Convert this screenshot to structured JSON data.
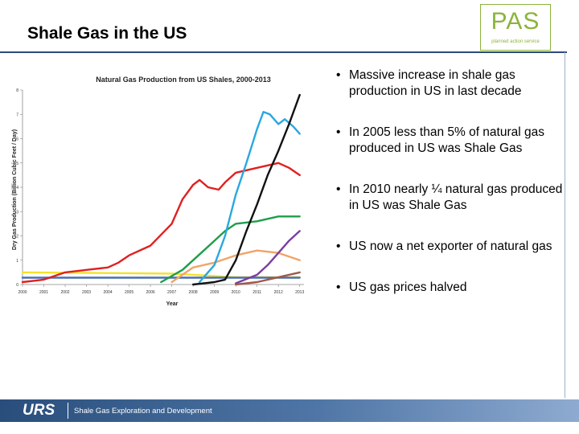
{
  "slide": {
    "title": "Shale Gas in the US",
    "logo_text": "PAS",
    "logo_subtext": "planned action service",
    "footer_logo": "URS",
    "footer_text": "Shale Gas Exploration and Development"
  },
  "bullets": [
    "Massive increase in shale gas production in US in last decade",
    "In 2005  less than 5% of natural gas produced in US was Shale Gas",
    "In 2010 nearly ¼ natural gas produced in US was Shale Gas",
    "US now a net exporter of natural gas",
    "US gas prices halved"
  ],
  "chart_data": {
    "type": "line",
    "title": "Natural Gas Production from US Shales, 2000-2013",
    "xlabel": "Year",
    "ylabel": "Dry Gas Production (Billion Cubic Feet / Day)",
    "xlim": [
      2000,
      2013.2
    ],
    "ylim": [
      0,
      8
    ],
    "x_ticks": [
      "2000",
      "2001",
      "2002",
      "2003",
      "2004",
      "2005",
      "2006",
      "2007",
      "2008",
      "2009",
      "2010",
      "2011",
      "2012",
      "2013"
    ],
    "y_ticks": [
      "0",
      "1",
      "2",
      "3",
      "4",
      "5",
      "6",
      "7",
      "8"
    ],
    "grid": false,
    "series": [
      {
        "color": "#f2e22a",
        "points": [
          [
            2000,
            0.5
          ],
          [
            2007,
            0.45
          ],
          [
            2008,
            0.4
          ],
          [
            2009,
            0.35
          ],
          [
            2010,
            0.3
          ],
          [
            2013,
            0.3
          ]
        ]
      },
      {
        "color": "#4a6fb5",
        "points": [
          [
            2000,
            0.28
          ],
          [
            2013,
            0.28
          ]
        ]
      },
      {
        "color": "#e02020",
        "points": [
          [
            2000,
            0.1
          ],
          [
            2001,
            0.2
          ],
          [
            2002,
            0.5
          ],
          [
            2003,
            0.6
          ],
          [
            2004,
            0.7
          ],
          [
            2004.5,
            0.9
          ],
          [
            2005,
            1.2
          ],
          [
            2006,
            1.6
          ],
          [
            2007,
            2.5
          ],
          [
            2007.5,
            3.5
          ],
          [
            2008,
            4.1
          ],
          [
            2008.3,
            4.3
          ],
          [
            2008.7,
            4.0
          ],
          [
            2009.2,
            3.9
          ],
          [
            2009.5,
            4.2
          ],
          [
            2010,
            4.6
          ],
          [
            2011,
            4.8
          ],
          [
            2012,
            5.0
          ],
          [
            2012.5,
            4.8
          ],
          [
            2013,
            4.5
          ]
        ]
      },
      {
        "color": "#1e9e4a",
        "points": [
          [
            2006.5,
            0.1
          ],
          [
            2007.5,
            0.6
          ],
          [
            2008,
            1.0
          ],
          [
            2008.5,
            1.4
          ],
          [
            2009,
            1.8
          ],
          [
            2009.5,
            2.2
          ],
          [
            2010,
            2.5
          ],
          [
            2011,
            2.6
          ],
          [
            2012,
            2.8
          ],
          [
            2013,
            2.8
          ]
        ]
      },
      {
        "color": "#f0a46a",
        "points": [
          [
            2007,
            0.1
          ],
          [
            2008,
            0.7
          ],
          [
            2009,
            0.9
          ],
          [
            2010,
            1.2
          ],
          [
            2011,
            1.4
          ],
          [
            2012,
            1.3
          ],
          [
            2013,
            1.0
          ]
        ]
      },
      {
        "color": "#29a8e0",
        "points": [
          [
            2008.3,
            0.1
          ],
          [
            2009,
            0.8
          ],
          [
            2009.5,
            2.0
          ],
          [
            2010,
            3.7
          ],
          [
            2010.5,
            5.0
          ],
          [
            2011,
            6.4
          ],
          [
            2011.3,
            7.1
          ],
          [
            2011.6,
            7.0
          ],
          [
            2012,
            6.6
          ],
          [
            2012.3,
            6.8
          ],
          [
            2012.7,
            6.5
          ],
          [
            2013,
            6.2
          ]
        ]
      },
      {
        "color": "#111111",
        "points": [
          [
            2008,
            0.0
          ],
          [
            2009,
            0.1
          ],
          [
            2009.5,
            0.2
          ],
          [
            2010,
            1.0
          ],
          [
            2010.5,
            2.2
          ],
          [
            2011,
            3.3
          ],
          [
            2011.5,
            4.5
          ],
          [
            2012,
            5.5
          ],
          [
            2012.5,
            6.6
          ],
          [
            2013,
            7.8
          ]
        ]
      },
      {
        "color": "#7a3fa0",
        "points": [
          [
            2010,
            0.05
          ],
          [
            2011,
            0.4
          ],
          [
            2011.5,
            0.8
          ],
          [
            2012,
            1.3
          ],
          [
            2012.5,
            1.8
          ],
          [
            2013,
            2.2
          ]
        ]
      },
      {
        "color": "#a05a4a",
        "points": [
          [
            2010,
            0.0
          ],
          [
            2011,
            0.1
          ],
          [
            2012,
            0.3
          ],
          [
            2013,
            0.5
          ]
        ]
      }
    ]
  }
}
